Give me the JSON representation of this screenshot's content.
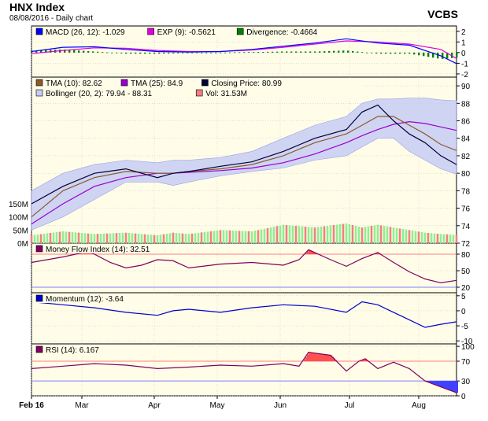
{
  "header": {
    "title": "HNX Index",
    "subtitle": "08/08/2016 - Daily chart",
    "source": "VCBS"
  },
  "colors": {
    "panel_bg": "#fffde8",
    "grid": "#c0c0c0",
    "macd": "#0000ff",
    "exp": "#e000e0",
    "divergence": "#008000",
    "tma10": "#8b5a2b",
    "tma25": "#9900cc",
    "close": "#000033",
    "bollinger": "#c8ccf5",
    "volume": "#f08080",
    "mfi": "#800060",
    "momentum": "#0000cc",
    "rsi": "#800060",
    "overbought_fill": "#ff5050",
    "oversold_fill": "#4040ff",
    "ref_top": "#ff8080",
    "ref_bottom": "#8080ff"
  },
  "chart_data": [
    {
      "type": "line",
      "panel": "macd",
      "legend": [
        {
          "text": "MACD (26, 12): -1.029",
          "color": "#0000ff"
        },
        {
          "text": "EXP (9): -0.5621",
          "color": "#e000e0"
        },
        {
          "text": "Divergence: -0.4664",
          "color": "#008000"
        }
      ],
      "y_ticks": [
        "2",
        "1",
        "0",
        "-1",
        "-2"
      ],
      "ylim": [
        -2.3,
        2.5
      ],
      "x_days": [
        0,
        10,
        20,
        30,
        40,
        50,
        60,
        70,
        80,
        90,
        100,
        110,
        120,
        130,
        135
      ],
      "macd": [
        0.1,
        0.5,
        0.55,
        0.3,
        0.1,
        0.05,
        0.1,
        0.3,
        0.6,
        0.9,
        1.3,
        0.9,
        0.7,
        -0.3,
        -1.03
      ],
      "exp": [
        -0.1,
        0.2,
        0.45,
        0.4,
        0.2,
        0.1,
        0.1,
        0.25,
        0.5,
        0.8,
        1.1,
        1.0,
        0.8,
        0.3,
        -0.56
      ],
      "divergence": [
        0.2,
        0.3,
        0.1,
        -0.1,
        -0.1,
        -0.05,
        0.0,
        0.05,
        0.1,
        0.1,
        0.2,
        -0.1,
        -0.1,
        -0.6,
        -0.47
      ]
    },
    {
      "type": "line",
      "panel": "price",
      "legend": [
        {
          "text": "TMA (10): 82.62",
          "color": "#8b5a2b"
        },
        {
          "text": "TMA (25): 84.9",
          "color": "#9900cc"
        },
        {
          "text": "Closing Price: 80.99",
          "color": "#000033"
        },
        {
          "text": "Bollinger (20, 2): 79.94 - 88.31",
          "color": "#c8ccf5"
        },
        {
          "text": "Vol: 31.53M",
          "color": "#f08080"
        }
      ],
      "y_ticks": [
        "90",
        "88",
        "86",
        "84",
        "82",
        "80",
        "78",
        "76",
        "74",
        "72"
      ],
      "ylim": [
        72,
        91
      ],
      "volume_ticks": [
        "150M",
        "100M",
        "50M",
        "0M"
      ],
      "volume_lim": [
        0,
        180
      ],
      "x_days": [
        0,
        10,
        20,
        30,
        40,
        45,
        50,
        60,
        70,
        80,
        90,
        100,
        105,
        110,
        115,
        120,
        125,
        130,
        135
      ],
      "close": [
        76.5,
        78.5,
        80.0,
        80.5,
        79.5,
        80.0,
        80.2,
        80.8,
        81.3,
        82.5,
        84.0,
        85.0,
        87.0,
        87.8,
        86.0,
        84.5,
        83.5,
        82.0,
        81.0
      ],
      "tma10": [
        75.0,
        78.0,
        79.5,
        80.2,
        80.0,
        80.0,
        80.2,
        80.5,
        81.0,
        82.0,
        83.5,
        84.5,
        85.5,
        86.5,
        86.5,
        85.5,
        84.5,
        83.3,
        82.6
      ],
      "tma25": [
        74.2,
        76.5,
        78.5,
        79.5,
        80.0,
        80.0,
        80.1,
        80.3,
        80.6,
        81.2,
        82.2,
        83.5,
        84.3,
        85.0,
        85.6,
        85.9,
        85.7,
        85.3,
        84.9
      ],
      "boll_upper": [
        78.0,
        80.0,
        81.0,
        81.5,
        81.2,
        81.5,
        81.5,
        81.8,
        82.5,
        84.0,
        85.5,
        86.5,
        88.0,
        88.5,
        88.5,
        88.6,
        88.6,
        88.4,
        88.3
      ],
      "boll_lower": [
        73.5,
        75.0,
        77.0,
        79.0,
        79.0,
        78.6,
        79.0,
        79.7,
        80.2,
        80.6,
        81.5,
        82.0,
        83.0,
        84.0,
        84.0,
        82.5,
        81.5,
        80.5,
        79.9
      ],
      "volume": [
        30,
        45,
        35,
        40,
        30,
        40,
        35,
        50,
        45,
        70,
        60,
        75,
        60,
        70,
        60,
        50,
        40,
        35,
        31.5
      ]
    },
    {
      "type": "line",
      "panel": "mfi",
      "legend": [
        {
          "text": "Money Flow Index (14): 32.51",
          "color": "#800060"
        }
      ],
      "y_ticks": [
        "80",
        "50",
        "20"
      ],
      "ylim": [
        10,
        100
      ],
      "ref_lines": [
        80,
        20
      ],
      "x_days": [
        0,
        10,
        18,
        20,
        25,
        30,
        35,
        40,
        45,
        50,
        60,
        70,
        80,
        85,
        88,
        95,
        100,
        105,
        110,
        115,
        120,
        125,
        130,
        135
      ],
      "values": [
        65,
        75,
        85,
        80,
        65,
        55,
        60,
        70,
        68,
        55,
        62,
        65,
        60,
        70,
        88,
        70,
        58,
        72,
        83,
        65,
        48,
        35,
        28,
        32.5
      ]
    },
    {
      "type": "line",
      "panel": "momentum",
      "legend": [
        {
          "text": "Momentum (12): -3.64",
          "color": "#0000cc"
        }
      ],
      "y_ticks": [
        "5",
        "0",
        "-5",
        "-10"
      ],
      "ylim": [
        -11,
        6
      ],
      "x_days": [
        0,
        10,
        20,
        30,
        40,
        45,
        50,
        60,
        70,
        80,
        90,
        100,
        105,
        110,
        115,
        120,
        125,
        130,
        135
      ],
      "values": [
        3.0,
        2.0,
        1.0,
        -0.5,
        -1.5,
        0.0,
        0.5,
        -0.5,
        1.0,
        2.0,
        1.5,
        -0.5,
        3.0,
        2.0,
        -0.5,
        -3.0,
        -5.5,
        -4.5,
        -3.64
      ]
    },
    {
      "type": "line",
      "panel": "rsi",
      "legend": [
        {
          "text": "RSI (14): 6.167",
          "color": "#800060"
        }
      ],
      "y_ticks": [
        "100",
        "70",
        "30",
        "0"
      ],
      "ylim": [
        0,
        105
      ],
      "ref_lines": [
        70,
        30
      ],
      "x_days": [
        0,
        10,
        20,
        30,
        40,
        50,
        60,
        70,
        80,
        85,
        88,
        95,
        100,
        104,
        106,
        110,
        115,
        120,
        125,
        130,
        135
      ],
      "values": [
        55,
        60,
        65,
        62,
        55,
        58,
        62,
        60,
        65,
        60,
        88,
        82,
        50,
        70,
        75,
        55,
        68,
        55,
        30,
        18,
        6.2
      ]
    }
  ],
  "x_axis": {
    "labels": [
      {
        "text": "Feb 16",
        "day": 0
      },
      {
        "text": "Mar",
        "day": 16
      },
      {
        "text": "Apr",
        "day": 39
      },
      {
        "text": "May",
        "day": 59
      },
      {
        "text": "Jun",
        "day": 79
      },
      {
        "text": "Jul",
        "day": 101
      },
      {
        "text": "Aug",
        "day": 123
      }
    ],
    "range": [
      0,
      135
    ]
  }
}
